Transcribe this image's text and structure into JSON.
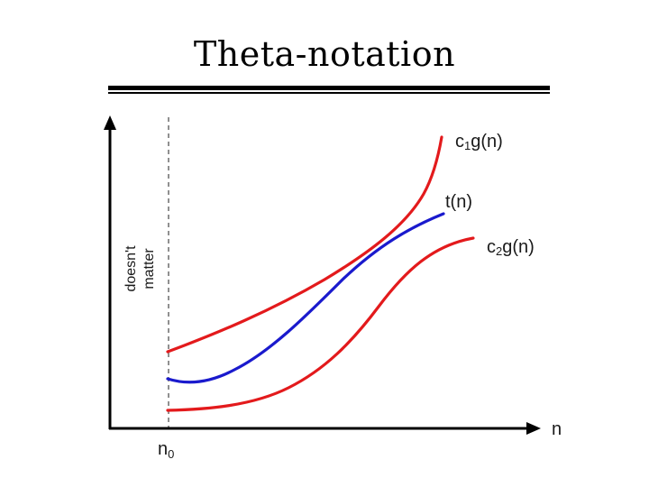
{
  "slide": {
    "title": "Theta-notation"
  },
  "diagram": {
    "x_axis_label": "n",
    "x_marker_label": "n",
    "x_marker_subscript": "0",
    "left_region_label_line1": "doesn't",
    "left_region_label_line2": "matter",
    "curves": [
      {
        "name": "upper-bound",
        "label_prefix": "c",
        "label_subscript": "1",
        "label_suffix": "g(n)",
        "color": "#e31a1c"
      },
      {
        "name": "function",
        "label": "t(n)",
        "color": "#1a1acd"
      },
      {
        "name": "lower-bound",
        "label_prefix": "c",
        "label_subscript": "2",
        "label_suffix": "g(n)",
        "color": "#e31a1c"
      }
    ],
    "axis_color": "#000000",
    "dashed_line_color": "#555555"
  }
}
